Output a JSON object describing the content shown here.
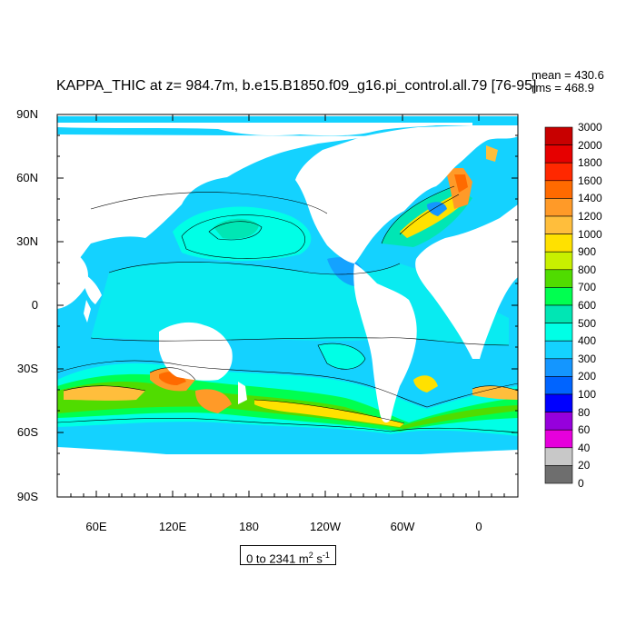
{
  "map": {
    "title": "KAPPA_THIC at z= 984.7m, b.e15.B1850.f09_g16.pi_control.all.79 [76-95]",
    "mean_text": "mean = 430.6",
    "rms_text": "rms = 468.9",
    "lat_labels": [
      "90N",
      "60N",
      "30N",
      "0",
      "30S",
      "60S",
      "90S"
    ],
    "lon_labels": [
      "60E",
      "120E",
      "180",
      "120W",
      "60W",
      "0"
    ],
    "units_prefix": "0 to 2341 m",
    "units_exp1": "2",
    "units_mid": " s",
    "units_exp2": "-1",
    "colorbar": {
      "levels": [
        "3000",
        "2000",
        "1800",
        "1600",
        "1400",
        "1200",
        "1000",
        "900",
        "800",
        "700",
        "600",
        "500",
        "400",
        "300",
        "200",
        "100",
        "80",
        "60",
        "40",
        "20",
        "0"
      ],
      "colors": [
        "#c80000",
        "#e60000",
        "#ff2800",
        "#ff6a00",
        "#ff9a28",
        "#ffbe3c",
        "#ffe100",
        "#c8f000",
        "#50dc00",
        "#00ff50",
        "#00e6b4",
        "#00ffe6",
        "#14d2ff",
        "#1496ff",
        "#0064ff",
        "#0000ff",
        "#9600dc",
        "#e600dc",
        "#c8c8c8",
        "#6e6e6e"
      ]
    }
  }
}
